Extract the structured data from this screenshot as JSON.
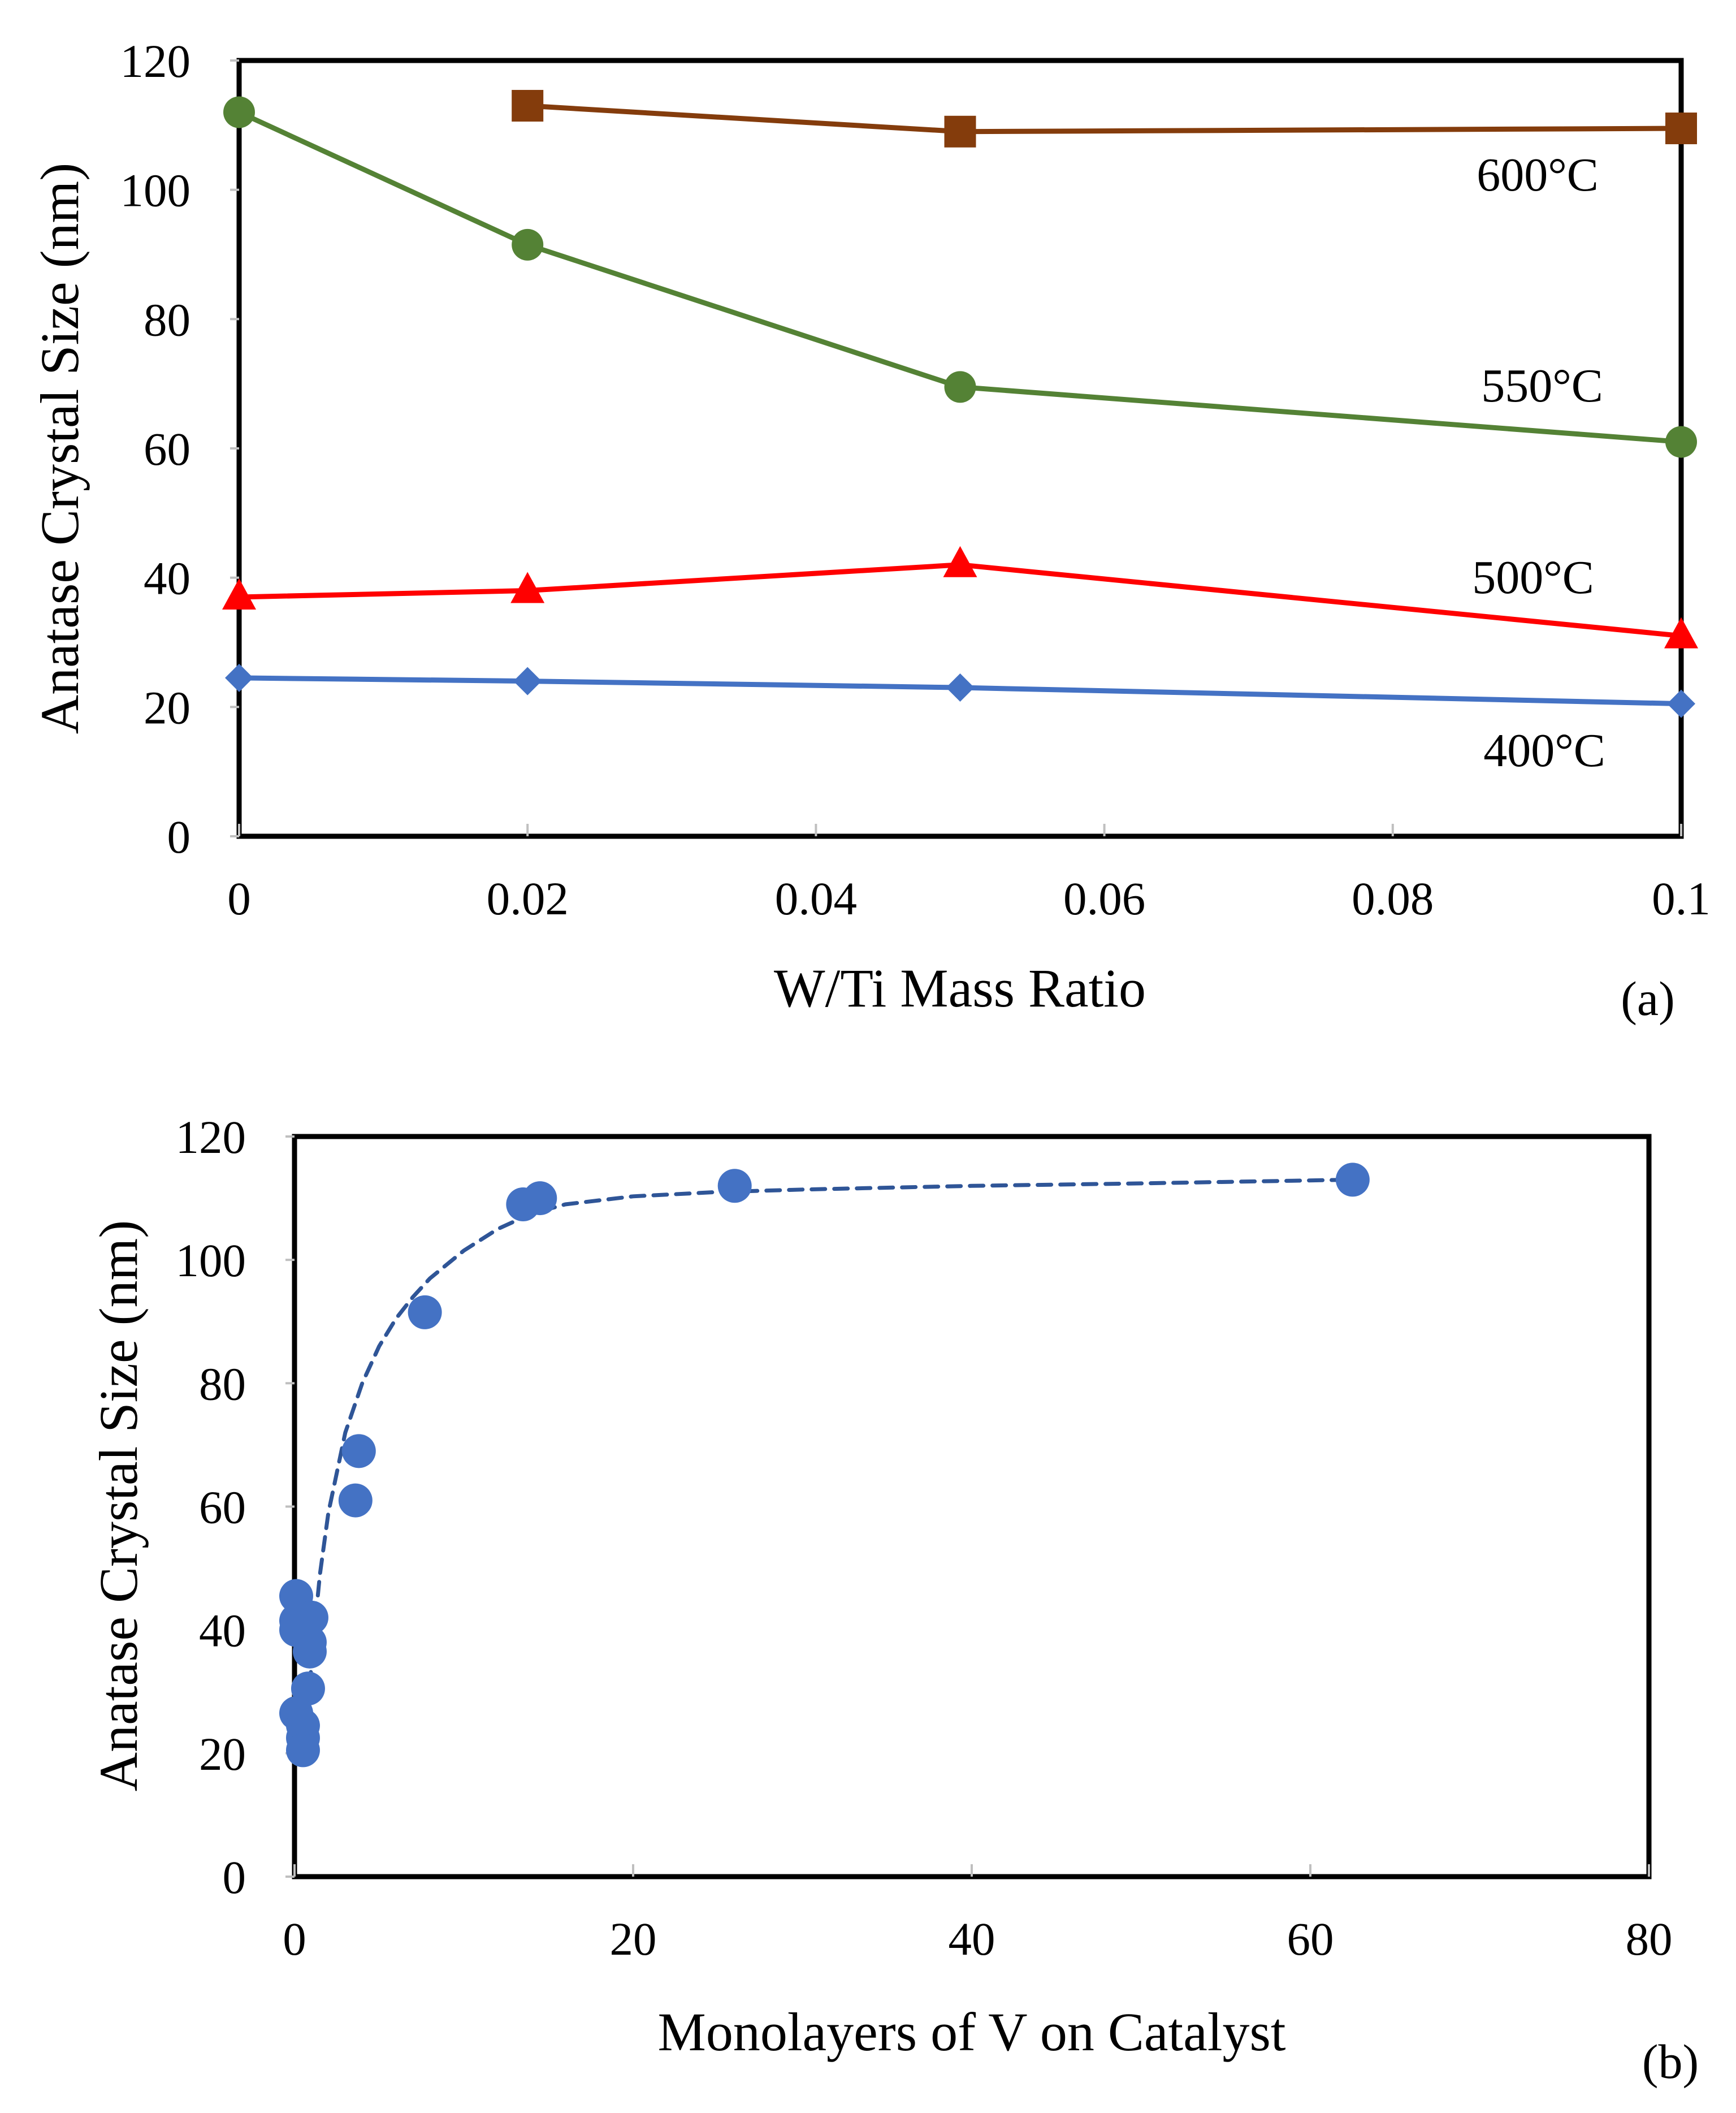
{
  "chart_data": [
    {
      "panel_label": "(a)",
      "type": "line",
      "xlabel": "W/Ti Mass Ratio",
      "ylabel": "Anatase Crystal Size (nm)",
      "xlim": [
        0,
        0.1
      ],
      "ylim": [
        0,
        120
      ],
      "xticks": [
        0,
        0.02,
        0.04,
        0.06,
        0.08,
        0.1
      ],
      "xtick_labels": [
        "0",
        "0.02",
        "0.04",
        "0.06",
        "0.08",
        "0.1"
      ],
      "yticks": [
        0,
        20,
        40,
        60,
        80,
        100,
        120
      ],
      "ytick_labels": [
        "0",
        "20",
        "40",
        "60",
        "80",
        "100",
        "120"
      ],
      "grid": false,
      "series": [
        {
          "name": "600°C",
          "color": "#843C0C",
          "marker": "square",
          "x": [
            0.02,
            0.05,
            0.1
          ],
          "y": [
            113,
            109,
            109.5
          ]
        },
        {
          "name": "550°C",
          "color": "#548235",
          "marker": "circle",
          "x": [
            0,
            0.02,
            0.05,
            0.1
          ],
          "y": [
            112,
            91.5,
            69.5,
            61
          ]
        },
        {
          "name": "500°C",
          "color": "#FF0000",
          "marker": "triangle",
          "x": [
            0,
            0.02,
            0.05,
            0.1
          ],
          "y": [
            37,
            38,
            42,
            31
          ]
        },
        {
          "name": "400°C",
          "color": "#4472C4",
          "marker": "diamond",
          "x": [
            0,
            0.02,
            0.05,
            0.1
          ],
          "y": [
            24.5,
            24,
            23,
            20.5
          ]
        }
      ]
    },
    {
      "panel_label": "(b)",
      "type": "scatter",
      "xlabel": "Monolayers of V on Catalyst",
      "ylabel": "Anatase Crystal Size (nm)",
      "xlim": [
        0,
        80
      ],
      "ylim": [
        0,
        120
      ],
      "xticks": [
        0,
        20,
        40,
        60,
        80
      ],
      "xtick_labels": [
        "0",
        "20",
        "40",
        "60",
        "80"
      ],
      "yticks": [
        0,
        20,
        40,
        60,
        80,
        100,
        120
      ],
      "ytick_labels": [
        "0",
        "20",
        "40",
        "60",
        "80",
        "100",
        "120"
      ],
      "grid": false,
      "color": "#4472C4",
      "points": {
        "x": [
          0.1,
          0.1,
          0.1,
          1.0,
          0.9,
          0.9,
          0.8,
          0.1,
          0.5,
          0.5,
          0.5,
          3.6,
          3.8,
          7.7,
          13.5,
          14.5,
          26.0,
          62.5
        ],
        "y": [
          45.5,
          41.5,
          40,
          42,
          38,
          36.5,
          30.5,
          26.5,
          24.5,
          22.5,
          20.5,
          61,
          69,
          91.5,
          109,
          110,
          112,
          113
        ]
      },
      "trend_line": {
        "style": "dashed",
        "x": [
          0.7,
          1.0,
          1.5,
          2,
          3,
          4,
          5,
          6,
          7,
          8,
          10,
          12,
          14,
          16,
          20,
          25,
          30,
          40,
          50,
          62.5
        ],
        "y": [
          20,
          35,
          49,
          59,
          72,
          80,
          86,
          90.5,
          94,
          97,
          101.5,
          105,
          107.5,
          109,
          110.3,
          111,
          111.4,
          112,
          112.4,
          113
        ]
      }
    }
  ]
}
